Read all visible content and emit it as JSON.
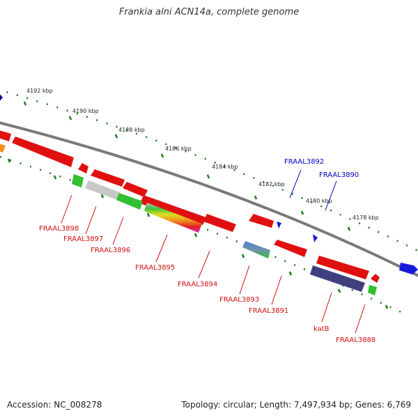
{
  "title": "Frankia alni ACN14a, complete genome",
  "footer": {
    "accession": "Accession: NC_008278",
    "summary": "Topology: circular; Length: 7,497,934 bp; Genes: 6,769"
  },
  "colors": {
    "backbone": "#7a7a7a",
    "tick": "#1a7a1a",
    "gene_red": "#e01010",
    "forward_label": "#0000c0",
    "reverse_label": "#d01010"
  },
  "kbp_markers": [
    "4192 kbp",
    "4190 kbp",
    "4188 kbp",
    "4186 kbp",
    "4184 kbp",
    "4182 kbp",
    "4180 kbp",
    "4178 kbp"
  ],
  "forward_gene_labels": [
    "FRAAL3892",
    "FRAAL3890"
  ],
  "reverse_gene_labels": [
    "FRAAL3898",
    "FRAAL3897",
    "FRAAL3896",
    "FRAAL3895",
    "FRAAL3894",
    "FRAAL3893",
    "FRAAL3891",
    "katB",
    "FRAAL3888"
  ]
}
